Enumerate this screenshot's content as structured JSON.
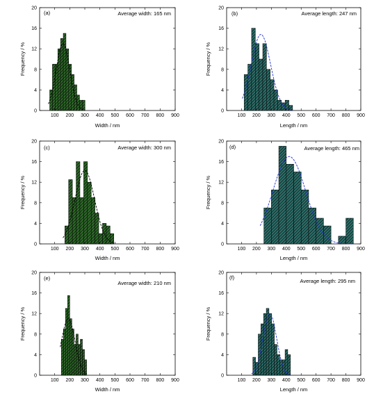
{
  "chart_data": [
    {
      "type": "bar",
      "panel_label": "(a)",
      "annotation": "Average width: 165 nm",
      "xlabel": "Width / nm",
      "ylabel": "Frequency / %",
      "xlim": [
        0,
        900
      ],
      "ylim": [
        0,
        20
      ],
      "xticks": [
        "100",
        "200",
        "300",
        "400",
        "500",
        "600",
        "700",
        "800",
        "900"
      ],
      "yticks": [
        "0",
        "4",
        "8",
        "12",
        "16",
        "20"
      ],
      "bin_width": 18,
      "bin_centers": [
        76,
        94,
        112,
        130,
        148,
        166,
        184,
        202,
        220,
        238,
        256,
        274,
        292
      ],
      "values": [
        4,
        9,
        9,
        12,
        14,
        15,
        12,
        9,
        7,
        5,
        3,
        2,
        2
      ],
      "fill_color": "#2f6b2a",
      "fit_color": "#000000",
      "fit": {
        "mean": 155,
        "sd": 45,
        "peak": 13
      }
    },
    {
      "type": "bar",
      "panel_label": "(b)",
      "annotation": "Average length: 247 nm",
      "xlabel": "Length / nm",
      "ylabel": "Frequency / %",
      "xlim": [
        0,
        900
      ],
      "ylim": [
        0,
        20
      ],
      "xticks": [
        "100",
        "200",
        "300",
        "400",
        "500",
        "600",
        "700",
        "800",
        "900"
      ],
      "yticks": [
        "0",
        "4",
        "8",
        "12",
        "16",
        "20"
      ],
      "bin_width": 25,
      "bin_centers": [
        130,
        155,
        180,
        205,
        230,
        255,
        280,
        305,
        330,
        355,
        380,
        405,
        430
      ],
      "values": [
        7,
        9,
        16,
        13,
        10,
        13,
        8,
        6,
        4,
        2,
        1.5,
        2,
        1
      ],
      "fill_color": "#2e6f6a",
      "fit_color": "#2233cc",
      "fit": {
        "mean": 230,
        "sd": 65,
        "peak": 14.8
      }
    },
    {
      "type": "bar",
      "panel_label": "(c)",
      "annotation": "Average width: 300 nm",
      "xlabel": "Width / nm",
      "ylabel": "Frequency / %",
      "xlim": [
        0,
        900
      ],
      "ylim": [
        0,
        20
      ],
      "xticks": [
        "100",
        "200",
        "300",
        "400",
        "500",
        "600",
        "700",
        "800",
        "900"
      ],
      "yticks": [
        "0",
        "4",
        "8",
        "12",
        "16",
        "20"
      ],
      "bin_width": 25,
      "bin_centers": [
        180,
        205,
        230,
        255,
        280,
        305,
        330,
        355,
        380,
        405,
        430,
        455,
        480
      ],
      "values": [
        3.5,
        12.5,
        9,
        16,
        9,
        16,
        12,
        9,
        6,
        2,
        4,
        3.5,
        2
      ],
      "fill_color": "#2f6b2a",
      "fit_color": "#000000",
      "fit": {
        "mean": 300,
        "sd": 65,
        "peak": 14.3
      }
    },
    {
      "type": "bar",
      "panel_label": "(d)",
      "annotation": "Average length: 465 nm",
      "xlabel": "Length / nm",
      "ylabel": "Frequency / %",
      "xlim": [
        0,
        900
      ],
      "ylim": [
        0,
        20
      ],
      "xticks": [
        "100",
        "200",
        "300",
        "400",
        "500",
        "600",
        "700",
        "800",
        "900"
      ],
      "yticks": [
        "0",
        "4",
        "8",
        "12",
        "16",
        "20"
      ],
      "bin_width": 50,
      "bin_centers": [
        275,
        325,
        375,
        425,
        475,
        525,
        575,
        625,
        675,
        725,
        775,
        825
      ],
      "values": [
        7,
        10.5,
        19,
        15.5,
        14,
        10.5,
        7,
        5,
        3.5,
        0,
        1.5,
        5
      ],
      "fill_color": "#2e6f6a",
      "fit_color": "#2233cc",
      "fit": {
        "mean": 420,
        "sd": 110,
        "peak": 17
      }
    },
    {
      "type": "bar",
      "panel_label": "(e)",
      "annotation": "Average width: 210 nm",
      "xlabel": "Width / nm",
      "ylabel": "Frequency / %",
      "xlim": [
        0,
        900
      ],
      "ylim": [
        0,
        20
      ],
      "xticks": [
        "100",
        "200",
        "300",
        "400",
        "500",
        "600",
        "700",
        "800",
        "900"
      ],
      "yticks": [
        "0",
        "4",
        "8",
        "12",
        "16",
        "20"
      ],
      "bin_width": 14,
      "bin_centers": [
        151,
        165,
        179,
        193,
        207,
        221,
        235,
        249,
        263,
        277,
        291,
        305
      ],
      "values": [
        7,
        9,
        13,
        15.5,
        11,
        9,
        6,
        8,
        6,
        7,
        5,
        3
      ],
      "fill_color": "#2f6b2a",
      "fit_color": "#000000",
      "fit": {
        "mean": 190,
        "sd": 45,
        "peak": 11
      }
    },
    {
      "type": "bar",
      "panel_label": "(f)",
      "annotation": "Average length: 295 nm",
      "xlabel": "Length / nm",
      "ylabel": "Frequency / %",
      "xlim": [
        0,
        900
      ],
      "ylim": [
        0,
        20
      ],
      "xticks": [
        "100",
        "200",
        "300",
        "400",
        "500",
        "600",
        "700",
        "800",
        "900"
      ],
      "yticks": [
        "0",
        "4",
        "8",
        "12",
        "16",
        "20"
      ],
      "bin_width": 18,
      "bin_centers": [
        185,
        203,
        221,
        239,
        257,
        275,
        293,
        311,
        329,
        347,
        365,
        383,
        401,
        419
      ],
      "values": [
        3.5,
        2.5,
        8,
        10,
        12,
        13,
        12,
        10,
        6,
        4,
        3,
        3,
        5,
        4
      ],
      "fill_color": "#2e6f6a",
      "fit_color": "#2233cc",
      "fit": {
        "mean": 290,
        "sd": 45,
        "peak": 12
      }
    }
  ]
}
